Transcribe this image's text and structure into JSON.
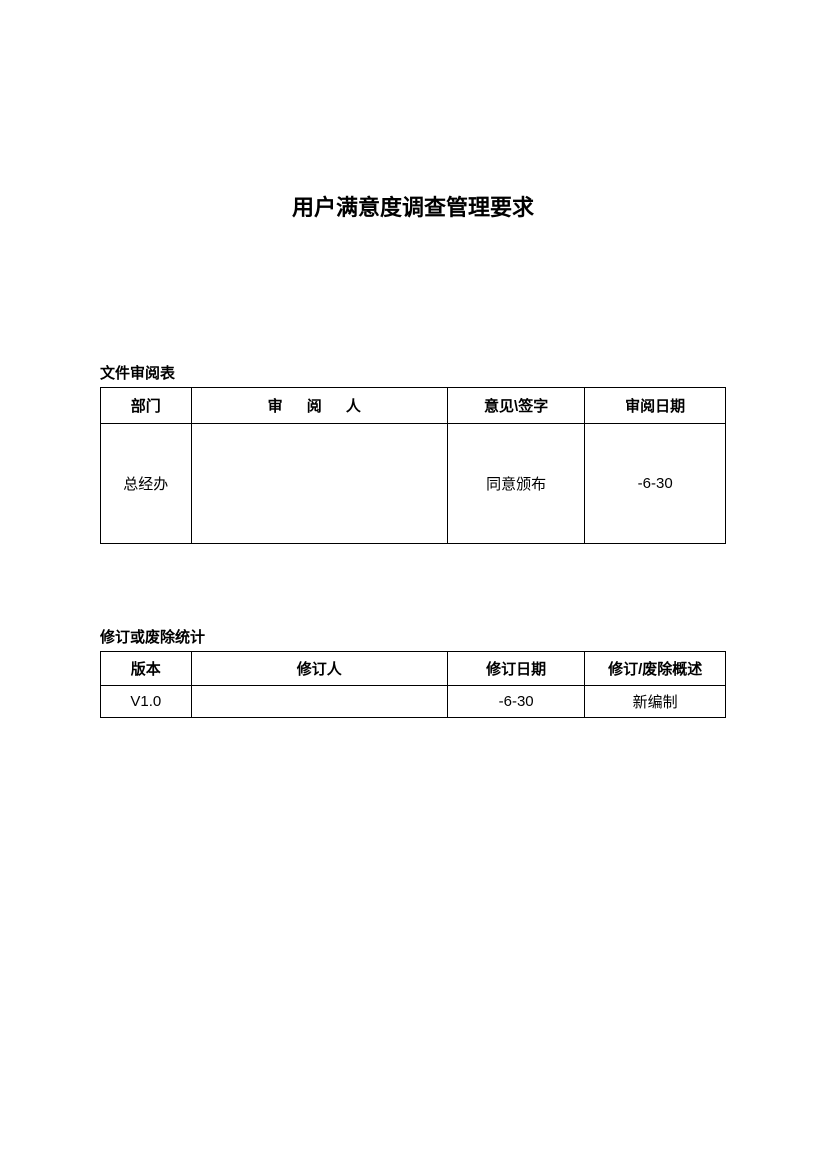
{
  "document": {
    "title": "用户满意度调查管理要求",
    "title_fontsize": 22,
    "title_fontweight": "bold",
    "background_color": "#ffffff",
    "text_color": "#000000",
    "border_color": "#000000"
  },
  "review_table": {
    "label": "文件审阅表",
    "type": "table",
    "columns": [
      {
        "header": "部门",
        "width_pct": 14.5
      },
      {
        "header": "审 阅 人",
        "width_pct": 41
      },
      {
        "header": "意见\\签字",
        "width_pct": 22
      },
      {
        "header": "审阅日期",
        "width_pct": 22.5
      }
    ],
    "rows": [
      {
        "dept": "总经办",
        "reviewer": "",
        "opinion": "同意颁布",
        "date": "-6-30"
      }
    ],
    "header_row_height": 36,
    "data_row_height": 120,
    "fontsize": 15,
    "border_width": 1.5
  },
  "revision_table": {
    "label": "修订或废除统计",
    "type": "table",
    "columns": [
      {
        "header": "版本",
        "width_pct": 14.5
      },
      {
        "header": "修订人",
        "width_pct": 41
      },
      {
        "header": "修订日期",
        "width_pct": 22
      },
      {
        "header": "修订/废除概述",
        "width_pct": 22.5
      }
    ],
    "rows": [
      {
        "version": "V1.0",
        "reviser": "",
        "date": "-6-30",
        "desc": "新编制"
      }
    ],
    "header_row_height": 34,
    "data_row_height": 32,
    "fontsize": 15,
    "border_width": 1.5
  }
}
